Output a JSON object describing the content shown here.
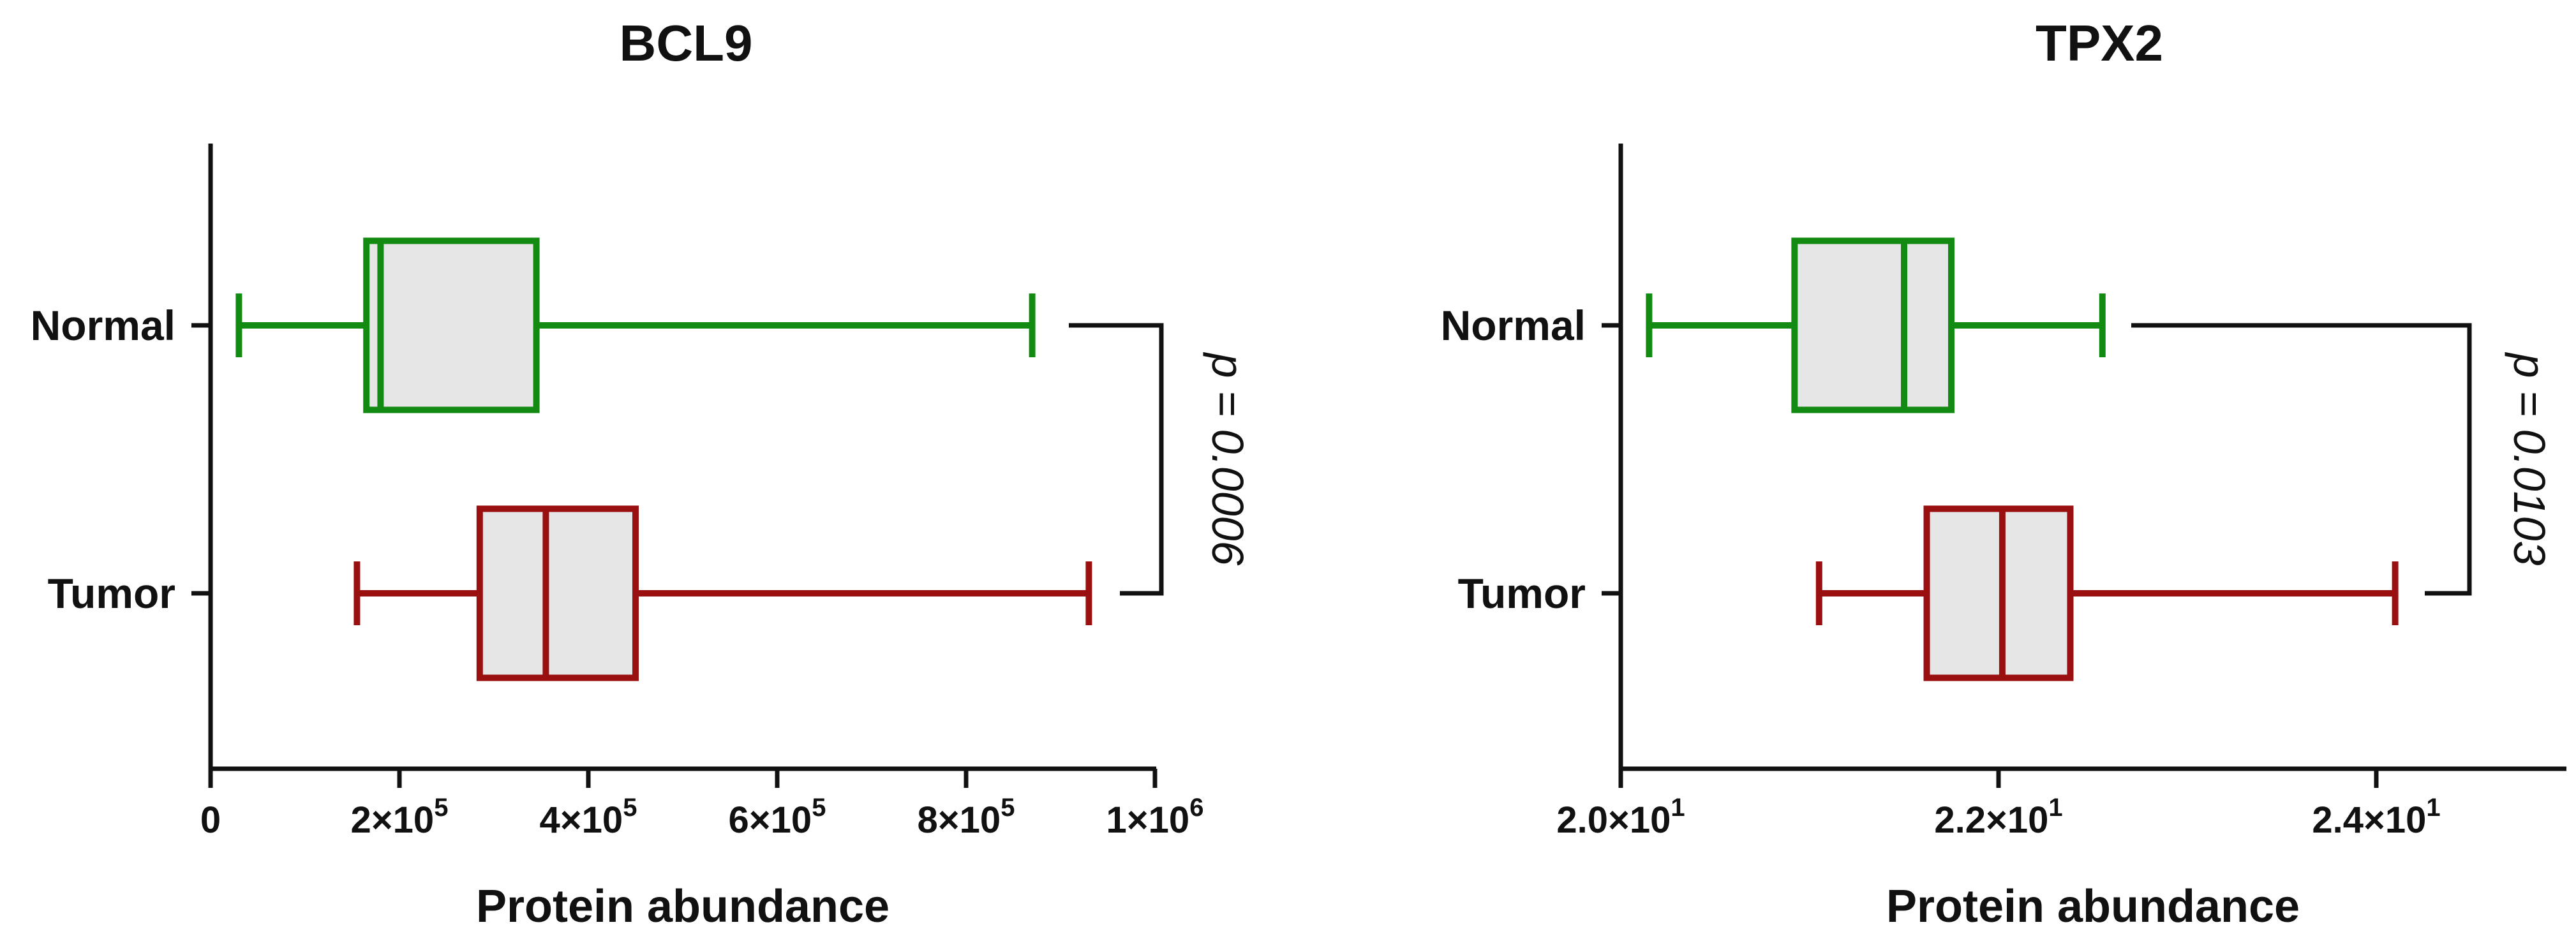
{
  "chart_data": [
    {
      "type": "box",
      "orientation": "horizontal",
      "title": "BCL9",
      "xlabel": "Protein abundance",
      "xlim": [
        0,
        1000000
      ],
      "x_ticks": [
        {
          "value": 0,
          "label": "0",
          "exp": ""
        },
        {
          "value": 200000,
          "label": "2×10",
          "exp": "5"
        },
        {
          "value": 400000,
          "label": "4×10",
          "exp": "5"
        },
        {
          "value": 600000,
          "label": "6×10",
          "exp": "5"
        },
        {
          "value": 800000,
          "label": "8×10",
          "exp": "5"
        },
        {
          "value": 1000000,
          "label": "1×10",
          "exp": "6"
        }
      ],
      "categories": [
        "Normal",
        "Tumor"
      ],
      "series": [
        {
          "category": "Normal",
          "color": "#138b13",
          "min": 30000,
          "q1": 165000,
          "median": 180000,
          "q3": 345000,
          "max": 870000
        },
        {
          "category": "Tumor",
          "color": "#9a0f0f",
          "min": 155000,
          "q1": 285000,
          "median": 355000,
          "q3": 450000,
          "max": 930000
        }
      ],
      "annotation": {
        "text": "p = 0.0006"
      }
    },
    {
      "type": "box",
      "orientation": "horizontal",
      "title": "TPX2",
      "xlabel": "Protein abundance",
      "xlim": [
        20,
        25
      ],
      "x_ticks": [
        {
          "value": 20,
          "label": "2.0×10",
          "exp": "1"
        },
        {
          "value": 22,
          "label": "2.2×10",
          "exp": "1"
        },
        {
          "value": 24,
          "label": "2.4×10",
          "exp": "1"
        }
      ],
      "categories": [
        "Normal",
        "Tumor"
      ],
      "series": [
        {
          "category": "Normal",
          "color": "#138b13",
          "min": 20.15,
          "q1": 20.92,
          "median": 21.5,
          "q3": 21.75,
          "max": 22.55
        },
        {
          "category": "Tumor",
          "color": "#9a0f0f",
          "min": 21.05,
          "q1": 21.62,
          "median": 22.02,
          "q3": 22.38,
          "max": 24.1
        }
      ],
      "annotation": {
        "text": "p = 0.0103"
      }
    }
  ]
}
